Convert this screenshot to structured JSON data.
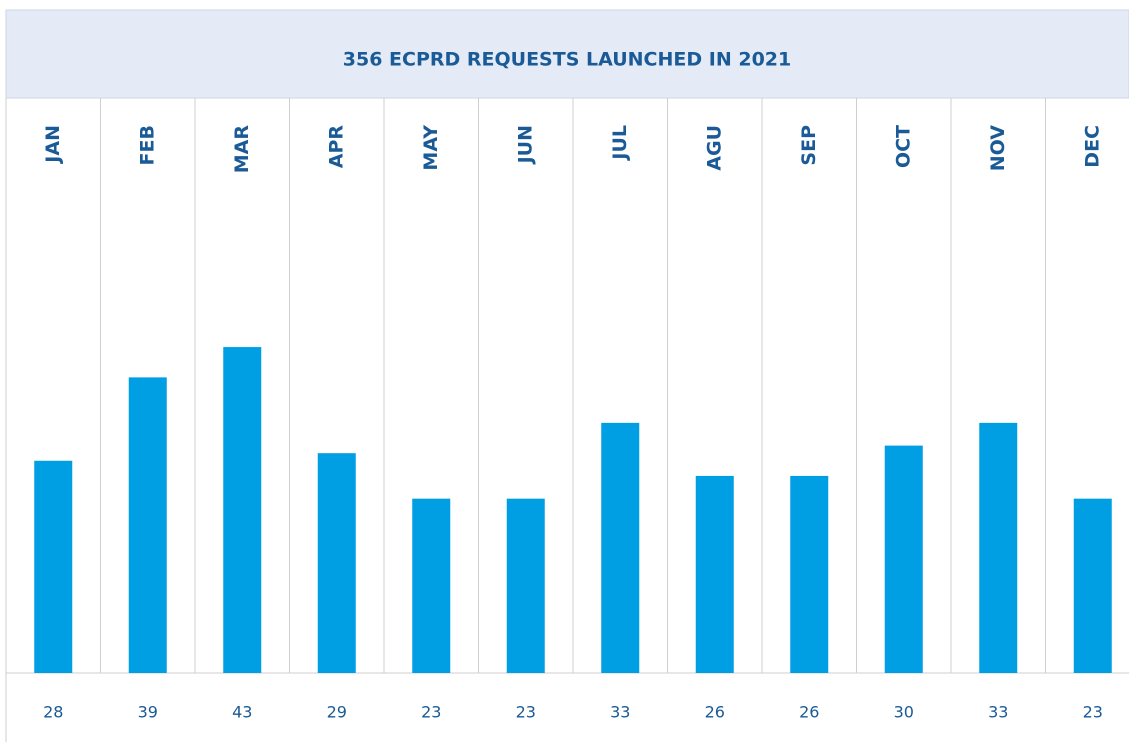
{
  "chart_data": {
    "type": "bar",
    "title": "356 ECPRD REQUESTS LAUNCHED IN 2021",
    "categories": [
      "JAN",
      "FEB",
      "MAR",
      "APR",
      "MAY",
      "JUN",
      "JUL",
      "AGU",
      "SEP",
      "OCT",
      "NOV",
      "DEC"
    ],
    "values": [
      28,
      39,
      43,
      29,
      23,
      23,
      33,
      26,
      26,
      30,
      33,
      23
    ],
    "color": "#009fe3"
  }
}
